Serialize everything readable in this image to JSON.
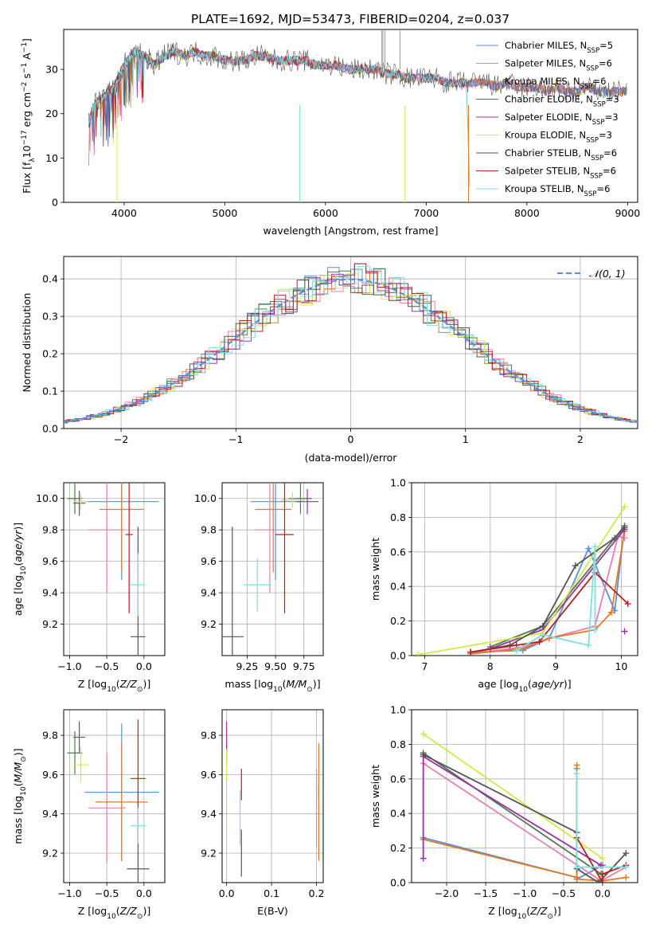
{
  "figure": {
    "title": "PLATE=1692, MJD=53473, FIBERID=0204, z=0.037",
    "colors": {
      "chabrier_miles": "#5b8ee0",
      "salpeter_miles": "#e77fb5",
      "kroupa_miles": "#e07b26",
      "chabrier_elodie": "#4e7a4e",
      "salpeter_elodie": "#9b30a6",
      "kroupa_elodie": "#d4e84b",
      "chabrier_stelib": "#555555",
      "salpeter_stelib": "#b22222",
      "kroupa_stelib": "#7fdede",
      "normal_curve": "#5b8ee0"
    }
  },
  "chart_data": [
    {
      "id": "spectrum",
      "type": "line",
      "xlabel": "wavelength [Angstrom, rest frame]",
      "ylabel": "Flux [f_λ 10^-17 erg cm^-2 s^-1 A^-1]",
      "xlim": [
        3400,
        9100
      ],
      "ylim": [
        0,
        39
      ],
      "xticks": [
        "4000",
        "5000",
        "6000",
        "7000",
        "8000",
        "9000"
      ],
      "yticks": [
        "0",
        "10",
        "20",
        "30"
      ],
      "legend_position": "top-right",
      "legend": [
        {
          "key": "chabrier_miles",
          "label": "Chabrier MILES, N",
          "sub": "SSP",
          "suffix": "=5"
        },
        {
          "key": "salpeter_miles",
          "label": "Salpeter MILES, N",
          "sub": "SSP",
          "suffix": "=6"
        },
        {
          "key": "kroupa_miles",
          "label": "Kroupa MILES, N",
          "sub": "SSP",
          "suffix": "=6"
        },
        {
          "key": "chabrier_elodie",
          "label": "Chabrier ELODIE, N",
          "sub": "SSP",
          "suffix": "=3"
        },
        {
          "key": "salpeter_elodie",
          "label": "Salpeter ELODIE, N",
          "sub": "SSP",
          "suffix": "=3"
        },
        {
          "key": "kroupa_elodie",
          "label": "Kroupa ELODIE, N",
          "sub": "SSP",
          "suffix": "=3"
        },
        {
          "key": "chabrier_stelib",
          "label": "Chabrier STELIB, N",
          "sub": "SSP",
          "suffix": "=6"
        },
        {
          "key": "salpeter_stelib",
          "label": "Salpeter STELIB, N",
          "sub": "SSP",
          "suffix": "=6"
        },
        {
          "key": "kroupa_stelib",
          "label": "Kroupa STELIB, N",
          "sub": "SSP",
          "suffix": "=6"
        }
      ],
      "series": [
        {
          "key": "chabrier_stelib",
          "x": [
            3650,
            3700,
            3800,
            3900,
            4000,
            4100,
            4200,
            4300,
            4400,
            4500,
            4600,
            4700,
            4800,
            4900,
            5000,
            5100,
            5200,
            5300,
            5400,
            5500,
            5600,
            5700,
            5800,
            5900,
            6000,
            6100,
            6200,
            6300,
            6400,
            6500,
            6600,
            6700,
            6800,
            6900,
            7000,
            7100,
            7200,
            7300,
            7400,
            7500,
            7600,
            7700,
            7800,
            7900,
            8000,
            8100,
            8200,
            8300,
            8400,
            8500,
            8600,
            8700,
            8800,
            8900,
            9000
          ],
          "y": [
            18,
            22,
            24,
            26,
            31,
            34,
            33,
            31,
            33,
            34,
            33,
            34,
            33,
            33,
            32,
            32,
            32,
            33,
            33,
            32,
            32,
            32,
            32,
            31,
            31,
            31,
            30,
            30,
            30,
            30,
            29,
            29,
            28,
            28,
            28,
            28,
            27,
            27,
            27,
            27,
            27,
            26,
            27,
            26,
            26,
            26,
            25,
            26,
            25,
            25,
            26,
            25,
            25,
            25,
            25
          ]
        },
        {
          "key": "kroupa_stelib",
          "x": [
            3650,
            3700,
            3800,
            3900,
            4000,
            4100,
            4200,
            4300,
            4400,
            4500,
            4600,
            4700,
            4800,
            4900,
            5000,
            5100,
            5200,
            5300,
            5400,
            5500,
            5600,
            5700,
            5800,
            5900,
            6000,
            6100,
            6200,
            6300,
            6400,
            6500,
            6600,
            6700,
            6800,
            6900,
            7000,
            7100,
            7200,
            7300,
            7400
          ],
          "y": [
            17,
            21,
            24,
            24,
            30,
            34,
            33,
            30,
            32,
            33,
            33,
            33,
            32,
            32,
            31,
            32,
            32,
            32,
            32,
            31,
            31,
            31,
            31,
            31,
            31,
            30,
            30,
            30,
            30,
            29,
            29,
            29,
            28,
            28,
            28,
            27,
            27,
            27,
            26
          ]
        },
        {
          "key": "kroupa_miles",
          "x": [
            4000,
            4500,
            5000,
            5500,
            6000,
            6500,
            7000,
            7200,
            7400,
            7420,
            7440
          ],
          "y": [
            32,
            33,
            32,
            32,
            31,
            29,
            28,
            27,
            26,
            10,
            0
          ]
        }
      ]
    },
    {
      "id": "residuals",
      "type": "line",
      "xlabel": "(data-model)/error",
      "ylabel": "Normed distribution",
      "xlim": [
        -2.5,
        2.5
      ],
      "ylim": [
        0,
        0.46
      ],
      "xticks": [
        "−2",
        "−1",
        "0",
        "1",
        "2"
      ],
      "yticks": [
        "0.0",
        "0.1",
        "0.2",
        "0.3",
        "0.4"
      ],
      "legend_position": "top-right",
      "legend": [
        {
          "key": "normal_curve",
          "label": "𝒩(0, 1)"
        }
      ],
      "bin_width": 0.1,
      "normal": {
        "mean": 0,
        "sigma": 1
      }
    },
    {
      "id": "age_vs_metallicity",
      "type": "scatter",
      "xlabel": "Z [log10(Z/Z⊙)]",
      "ylabel": "age  [log10(age/yr)]",
      "xlim": [
        -1.08,
        0.28
      ],
      "ylim": [
        9.0,
        10.1
      ],
      "xticks": [
        "−1.0",
        "−0.5",
        "0.0"
      ],
      "yticks": [
        "9.2",
        "9.4",
        "9.6",
        "9.8",
        "10.0"
      ],
      "points": [
        {
          "key": "chabrier_miles",
          "x": -0.3,
          "y": 9.98,
          "xerr": 0.5,
          "yerr": 0.5
        },
        {
          "key": "salpeter_miles",
          "x": -0.5,
          "y": 9.8,
          "xerr": 0.25,
          "yerr": 0.4
        },
        {
          "key": "kroupa_miles",
          "x": -0.3,
          "y": 9.93,
          "xerr": 0.3,
          "yerr": 0.4
        },
        {
          "key": "chabrier_elodie",
          "x": -0.93,
          "y": 10.0,
          "xerr": 0.1,
          "yerr": 0.1
        },
        {
          "key": "salpeter_elodie",
          "x": -0.87,
          "y": 9.97,
          "xerr": 0.08,
          "yerr": 0.08
        },
        {
          "key": "kroupa_elodie",
          "x": -0.85,
          "y": 9.98,
          "xerr": 0.1,
          "yerr": 0.05
        },
        {
          "key": "chabrier_stelib",
          "x": -0.08,
          "y": 9.12,
          "xerr": 0.1,
          "yerr": 0.7
        },
        {
          "key": "salpeter_stelib",
          "x": -0.2,
          "y": 9.77,
          "xerr": 0.05,
          "yerr": 0.5
        },
        {
          "key": "kroupa_stelib",
          "x": -0.08,
          "y": 9.45,
          "xerr": 0.1,
          "yerr": 0.2
        }
      ]
    },
    {
      "id": "age_vs_mass",
      "type": "scatter",
      "xlabel": "mass [log10(M/M⊙)]",
      "ylabel": "",
      "xlim": [
        9.03,
        9.92
      ],
      "ylim": [
        9.0,
        10.1
      ],
      "xticks": [
        "9.25",
        "9.50",
        "9.75"
      ],
      "yticks": [
        "9.2",
        "9.4",
        "9.6",
        "9.8",
        "10.0"
      ],
      "points": [
        {
          "key": "chabrier_miles",
          "x": 9.5,
          "y": 9.98,
          "xerr": 0.22,
          "yerr": 0.5
        },
        {
          "key": "salpeter_miles",
          "x": 9.45,
          "y": 9.8,
          "xerr": 0.13,
          "yerr": 0.4
        },
        {
          "key": "kroupa_miles",
          "x": 9.48,
          "y": 9.93,
          "xerr": 0.16,
          "yerr": 0.4
        },
        {
          "key": "chabrier_elodie",
          "x": 9.72,
          "y": 10.0,
          "xerr": 0.1,
          "yerr": 0.1
        },
        {
          "key": "salpeter_elodie",
          "x": 9.78,
          "y": 9.98,
          "xerr": 0.1,
          "yerr": 0.08
        },
        {
          "key": "kroupa_elodie",
          "x": 9.65,
          "y": 9.99,
          "xerr": 0.1,
          "yerr": 0.05
        },
        {
          "key": "chabrier_stelib",
          "x": 9.12,
          "y": 9.12,
          "xerr": 0.1,
          "yerr": 0.7
        },
        {
          "key": "salpeter_stelib",
          "x": 9.58,
          "y": 9.77,
          "xerr": 0.08,
          "yerr": 0.5
        },
        {
          "key": "kroupa_stelib",
          "x": 9.34,
          "y": 9.45,
          "xerr": 0.12,
          "yerr": 0.17
        }
      ]
    },
    {
      "id": "weight_vs_age",
      "type": "line",
      "xlabel": "age  [log10(age/yr)]",
      "ylabel": "mass weight",
      "xlim": [
        6.8,
        10.25
      ],
      "ylim": [
        0,
        1.0
      ],
      "xticks": [
        "7",
        "8",
        "9",
        "10"
      ],
      "yticks": [
        "0.0",
        "0.2",
        "0.4",
        "0.6",
        "0.8",
        "1.0"
      ],
      "series": [
        {
          "key": "chabrier_miles",
          "x": [
            7.7,
            8.5,
            8.9,
            9.5,
            9.9,
            10.05
          ],
          "y": [
            0.02,
            0.03,
            0.1,
            0.62,
            0.26,
            0.75
          ]
        },
        {
          "key": "salpeter_miles",
          "x": [
            7.7,
            8.5,
            8.9,
            9.6,
            9.95,
            10.05
          ],
          "y": [
            0.01,
            0.05,
            0.1,
            0.17,
            0.69,
            0.68
          ]
        },
        {
          "key": "kroupa_miles",
          "x": [
            7.7,
            8.5,
            8.9,
            9.6,
            9.85,
            10.05
          ],
          "y": [
            0.01,
            0.04,
            0.1,
            0.15,
            0.25,
            0.72
          ]
        },
        {
          "key": "chabrier_elodie",
          "x": [
            8.0,
            8.8,
            10.05
          ],
          "y": [
            0.05,
            0.17,
            0.75
          ]
        },
        {
          "key": "salpeter_elodie",
          "x": [
            8.0,
            8.8,
            10.05
          ],
          "y": [
            0.04,
            0.15,
            0.73
          ],
          "markers": [
            {
              "x": 10.05,
              "y": 0.14
            }
          ]
        },
        {
          "key": "kroupa_elodie",
          "x": [
            6.9,
            8.8,
            10.05
          ],
          "y": [
            0.005,
            0.13,
            0.86
          ]
        },
        {
          "key": "chabrier_stelib",
          "x": [
            7.7,
            8.3,
            8.8,
            9.3,
            9.9,
            10.05
          ],
          "y": [
            0.02,
            0.06,
            0.17,
            0.52,
            0.68,
            0.74
          ]
        },
        {
          "key": "salpeter_stelib",
          "x": [
            7.7,
            8.4,
            8.75,
            9.6,
            10.1
          ],
          "y": [
            0.02,
            0.06,
            0.08,
            0.48,
            0.3
          ]
        },
        {
          "key": "kroupa_stelib",
          "x": [
            8.4,
            8.8,
            9.5,
            9.6,
            9.6
          ],
          "y": [
            0.03,
            0.12,
            0.06,
            0.63,
            0.15
          ]
        }
      ]
    },
    {
      "id": "mass_vs_metallicity",
      "type": "scatter",
      "xlabel": "Z [log10(Z/Z⊙)]",
      "ylabel": "mass [log10(M/M⊙)]",
      "xlim": [
        -1.08,
        0.28
      ],
      "ylim": [
        9.05,
        9.93
      ],
      "xticks": [
        "−1.0",
        "−0.5",
        "0.0"
      ],
      "yticks": [
        "9.2",
        "9.4",
        "9.6",
        "9.8"
      ],
      "points": [
        {
          "key": "chabrier_miles",
          "x": -0.3,
          "y": 9.51,
          "xerr": 0.5,
          "yerr": 0.35
        },
        {
          "key": "salpeter_miles",
          "x": -0.5,
          "y": 9.43,
          "xerr": 0.25,
          "yerr": 0.28
        },
        {
          "key": "kroupa_miles",
          "x": -0.3,
          "y": 9.46,
          "xerr": 0.35,
          "yerr": 0.3
        },
        {
          "key": "chabrier_elodie",
          "x": -0.93,
          "y": 9.71,
          "xerr": 0.1,
          "yerr": 0.11
        },
        {
          "key": "salpeter_elodie",
          "x": -0.87,
          "y": 9.79,
          "xerr": 0.08,
          "yerr": 0.08
        },
        {
          "key": "kroupa_elodie",
          "x": -0.85,
          "y": 9.65,
          "xerr": 0.1,
          "yerr": 0.09
        },
        {
          "key": "chabrier_stelib",
          "x": -0.08,
          "y": 9.12,
          "xerr": 0.15,
          "yerr": 0.2
        },
        {
          "key": "salpeter_stelib",
          "x": -0.08,
          "y": 9.58,
          "xerr": 0.1,
          "yerr": 0.3
        },
        {
          "key": "kroupa_stelib",
          "x": -0.08,
          "y": 9.34,
          "xerr": 0.1,
          "yerr": 0.09
        }
      ]
    },
    {
      "id": "mass_vs_ebv",
      "type": "scatter",
      "xlabel": "E(B-V)",
      "ylabel": "",
      "xlim": [
        -0.01,
        0.215
      ],
      "ylim": [
        9.05,
        9.93
      ],
      "xticks": [
        "0.0",
        "0.1",
        "0.2"
      ],
      "yticks": [
        "9.2",
        "9.4",
        "9.6",
        "9.8"
      ],
      "points": [
        {
          "key": "chabrier_miles",
          "x": 0.205,
          "y": 9.51,
          "xerr": 0,
          "yerr": 0.03
        },
        {
          "key": "salpeter_miles",
          "x": 0.2,
          "y": 9.43,
          "xerr": 0,
          "yerr": 0.2
        },
        {
          "key": "kroupa_miles",
          "x": 0.205,
          "y": 9.46,
          "xerr": 0,
          "yerr": 0.3
        },
        {
          "key": "chabrier_elodie",
          "x": 0.0,
          "y": 9.71,
          "xerr": 0,
          "yerr": 0.05
        },
        {
          "key": "salpeter_elodie",
          "x": 0.0,
          "y": 9.79,
          "xerr": 0,
          "yerr": 0.08
        },
        {
          "key": "kroupa_elodie",
          "x": 0.0,
          "y": 9.65,
          "xerr": 0,
          "yerr": 0.08
        },
        {
          "key": "chabrier_stelib",
          "x": 0.033,
          "y": 9.2,
          "xerr": 0,
          "yerr": 0.12
        },
        {
          "key": "salpeter_stelib",
          "x": 0.033,
          "y": 9.55,
          "xerr": 0,
          "yerr": 0.08
        },
        {
          "key": "kroupa_stelib",
          "x": 0.03,
          "y": 9.38,
          "xerr": 0,
          "yerr": 0.14
        }
      ]
    },
    {
      "id": "weight_vs_metallicity",
      "type": "line",
      "xlabel": "Z [log10(Z/Z⊙)]",
      "ylabel": "mass weight",
      "xlim": [
        -2.45,
        0.45
      ],
      "ylim": [
        0,
        1.0
      ],
      "xticks": [
        "−2.0",
        "−1.5",
        "−1.0",
        "−0.5",
        "0.0"
      ],
      "yticks": [
        "0.0",
        "0.2",
        "0.4",
        "0.6",
        "0.8",
        "1.0"
      ],
      "series": [
        {
          "key": "chabrier_miles",
          "x": [
            -2.3,
            -0.33,
            -0.33,
            -0.33,
            0.0
          ],
          "y": [
            0.26,
            0.03,
            0.66,
            0.02,
            0.1
          ]
        },
        {
          "key": "salpeter_miles",
          "x": [
            -2.3,
            -0.02,
            0.3
          ],
          "y": [
            0.69,
            0.01,
            0.09
          ]
        },
        {
          "key": "kroupa_miles",
          "x": [
            -2.3,
            -0.33,
            -0.33,
            -0.33,
            0.0,
            0.3
          ],
          "y": [
            0.25,
            0.03,
            0.68,
            0.02,
            0.01,
            0.03
          ]
        },
        {
          "key": "chabrier_elodie",
          "x": [
            -2.3,
            -0.02
          ],
          "y": [
            0.75,
            0.05
          ]
        },
        {
          "key": "salpeter_elodie",
          "x": [
            -2.3,
            -2.3,
            -0.02
          ],
          "y": [
            0.14,
            0.73,
            0.1
          ]
        },
        {
          "key": "kroupa_elodie",
          "x": [
            -2.3,
            0.0
          ],
          "y": [
            0.86,
            0.14
          ]
        },
        {
          "key": "chabrier_stelib",
          "x": [
            -2.3,
            -0.33,
            -0.33,
            -0.05,
            0.3
          ],
          "y": [
            0.74,
            0.29,
            0.08,
            0.0,
            0.17
          ]
        },
        {
          "key": "salpeter_stelib",
          "x": [
            -0.33,
            0.0,
            0.0,
            0.3
          ],
          "y": [
            0.26,
            0.0,
            0.05,
            0.1
          ]
        },
        {
          "key": "kroupa_stelib",
          "x": [
            -0.33,
            -0.33,
            0.3
          ],
          "y": [
            0.63,
            0.09,
            0.09
          ]
        }
      ]
    }
  ]
}
